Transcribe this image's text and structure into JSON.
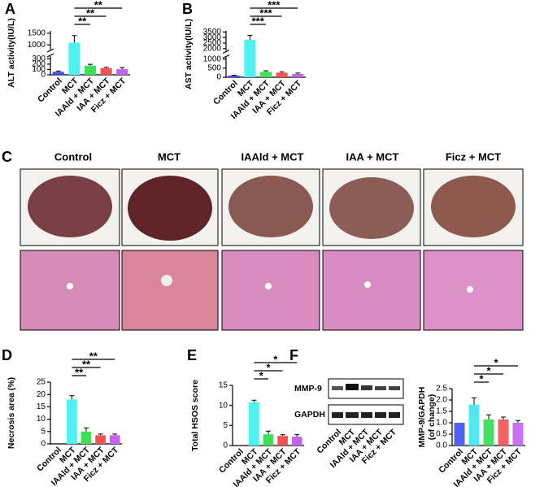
{
  "chart_data": [
    {
      "type": "bar",
      "panel": "A",
      "ylabel": "ALT activity(IU/L)",
      "categories": [
        "Control",
        "MCT",
        "IAAld + MCT",
        "IAA + MCT",
        "Ficz + MCT"
      ],
      "colors": [
        "#3a4ee6",
        "#4ef2f2",
        "#3ee055",
        "#f25252",
        "#c262f2"
      ],
      "values": [
        55,
        1100,
        170,
        125,
        105
      ],
      "errors": [
        15,
        300,
        25,
        15,
        30
      ],
      "ylim": [
        0,
        1600
      ],
      "ybreak": [
        350,
        800
      ],
      "yticks": [
        0,
        100,
        200,
        300,
        1000,
        1500
      ],
      "annotations": [
        {
          "label": "**",
          "between": [
            "MCT",
            "IAAld + MCT"
          ]
        },
        {
          "label": "**",
          "between": [
            "MCT",
            "IAA + MCT"
          ]
        },
        {
          "label": "**",
          "between": [
            "MCT",
            "Ficz + MCT"
          ]
        }
      ]
    },
    {
      "type": "bar",
      "panel": "B",
      "ylabel": "AST activity(IU/L)",
      "categories": [
        "Control",
        "MCT",
        "IAAld + MCT",
        "IAA + MCT",
        "Ficz + MCT"
      ],
      "colors": [
        "#3a4ee6",
        "#4ef2f2",
        "#3ee055",
        "#f25252",
        "#c262f2"
      ],
      "values": [
        90,
        2800,
        300,
        250,
        180
      ],
      "errors": [
        20,
        400,
        60,
        50,
        50
      ],
      "ylim": [
        0,
        3600
      ],
      "ybreak": [
        1100,
        1800
      ],
      "yticks": [
        0,
        500,
        1000,
        2000,
        2500,
        3000,
        3500
      ],
      "annotations": [
        {
          "label": "***",
          "between": [
            "MCT",
            "IAAld + MCT"
          ]
        },
        {
          "label": "***",
          "between": [
            "MCT",
            "IAA + MCT"
          ]
        },
        {
          "label": "***",
          "between": [
            "MCT",
            "Ficz + MCT"
          ]
        }
      ]
    },
    {
      "type": "bar",
      "panel": "D",
      "ylabel": "Necrosis area (%)",
      "categories": [
        "Control",
        "MCT",
        "IAAld + MCT",
        "IAA + MCT",
        "Ficz + MCT"
      ],
      "colors": [
        "#3a4ee6",
        "#4ef2f2",
        "#3ee055",
        "#f25252",
        "#c262f2"
      ],
      "values": [
        0,
        18,
        5,
        3.5,
        3.5
      ],
      "errors": [
        0,
        1.5,
        1.5,
        0.5,
        0.5
      ],
      "ylim": [
        0,
        25
      ],
      "yticks": [
        0,
        5,
        10,
        15,
        20,
        25
      ],
      "annotations": [
        {
          "label": "**",
          "between": [
            "MCT",
            "IAAld + MCT"
          ]
        },
        {
          "label": "**",
          "between": [
            "MCT",
            "IAA + MCT"
          ]
        },
        {
          "label": "**",
          "between": [
            "MCT",
            "Ficz + MCT"
          ]
        }
      ]
    },
    {
      "type": "bar",
      "panel": "E",
      "ylabel": "Total HSOS score",
      "categories": [
        "Control",
        "MCT",
        "IAAld + MCT",
        "IAA + MCT",
        "Ficz + MCT"
      ],
      "colors": [
        "#3a4ee6",
        "#4ef2f2",
        "#3ee055",
        "#f25252",
        "#c262f2"
      ],
      "values": [
        0,
        10.8,
        2.8,
        2.4,
        2.2
      ],
      "errors": [
        0,
        0.5,
        0.8,
        0.3,
        0.5
      ],
      "ylim": [
        0,
        15
      ],
      "yticks": [
        0,
        5,
        10,
        15
      ],
      "annotations": [
        {
          "label": "*",
          "between": [
            "MCT",
            "IAAld + MCT"
          ]
        },
        {
          "label": "*",
          "between": [
            "MCT",
            "IAA + MCT"
          ]
        },
        {
          "label": "*",
          "between": [
            "MCT",
            "Ficz + MCT"
          ]
        }
      ]
    },
    {
      "type": "bar",
      "ylabel": "MMP-9/GAPDH\n(of change)",
      "categories": [
        "Control",
        "MCT",
        "IAAld + MCT",
        "IAA + MCT",
        "Ficz + MCT"
      ],
      "colors": [
        "#5062f2",
        "#52e8f2",
        "#44e066",
        "#f26464",
        "#c672f2"
      ],
      "values": [
        1.0,
        1.8,
        1.15,
        1.15,
        1.0
      ],
      "errors": [
        0,
        0.3,
        0.2,
        0.1,
        0.1
      ],
      "ylim": [
        0,
        2.5
      ],
      "yticks": [
        {
          "value": 0,
          "label": "0.0"
        },
        0.5,
        {
          "value": 1,
          "label": "1.0"
        },
        1.5,
        {
          "value": 2,
          "label": "2.0"
        },
        2.5
      ],
      "annotations": [
        {
          "label": "*",
          "between": [
            "MCT",
            "IAAld + MCT"
          ]
        },
        {
          "label": "*",
          "between": [
            "MCT",
            "IAA + MCT"
          ]
        },
        {
          "label": "*",
          "between": [
            "MCT",
            "Ficz + MCT"
          ]
        }
      ]
    }
  ],
  "photo_panel": {
    "panel": "C",
    "labels": [
      "Control",
      "MCT",
      "IAAld + MCT",
      "IAA + MCT",
      "Ficz + MCT"
    ]
  },
  "blot": {
    "panel": "F",
    "rows": [
      "MMP-9",
      "GAPDH"
    ],
    "categories": [
      "Control",
      "MCT",
      "IAAld + MCT",
      "IAA + MCT",
      "Ficz + MCT"
    ]
  }
}
